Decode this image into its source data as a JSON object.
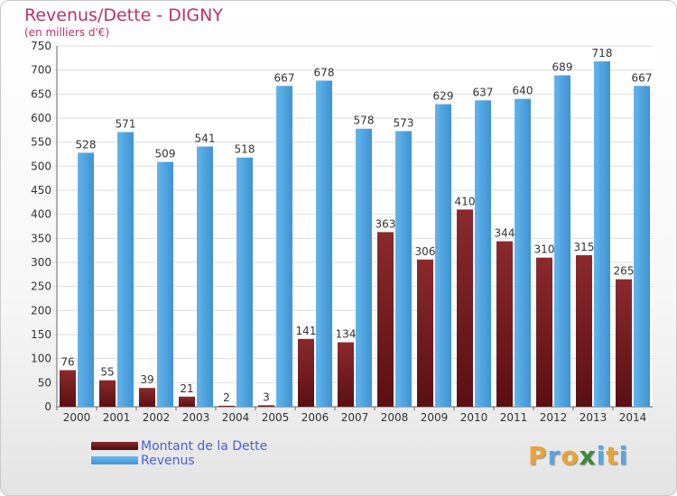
{
  "chart_data": {
    "type": "bar",
    "title": "Revenus/Dette - DIGNY",
    "subtitle": "(en milliers d'€)",
    "categories": [
      "2000",
      "2001",
      "2002",
      "2003",
      "2004",
      "2005",
      "2006",
      "2007",
      "2008",
      "2009",
      "2010",
      "2011",
      "2012",
      "2013",
      "2014"
    ],
    "series": [
      {
        "name": "Montant de la Dette",
        "values": [
          76,
          55,
          39,
          21,
          2,
          3,
          141,
          134,
          363,
          306,
          410,
          344,
          310,
          315,
          265
        ]
      },
      {
        "name": "Revenus",
        "values": [
          528,
          571,
          509,
          541,
          518,
          667,
          678,
          578,
          573,
          629,
          637,
          640,
          689,
          718,
          667
        ]
      }
    ],
    "ylim": [
      0,
      750
    ],
    "yticks": [
      0,
      50,
      100,
      150,
      200,
      250,
      300,
      350,
      400,
      450,
      500,
      550,
      600,
      650,
      700,
      750
    ],
    "grid": true,
    "legend": "bottom-left",
    "colors": {
      "dette": "#7a1f22",
      "revenus": "#4da3e0"
    }
  },
  "logo": {
    "text": "Proxiti",
    "letters": [
      {
        "ch": "P",
        "color": "#e8a33a"
      },
      {
        "ch": "r",
        "color": "#5aa6dd"
      },
      {
        "ch": "o",
        "color": "#e8a33a"
      },
      {
        "ch": "x",
        "color": "#3a8a3a"
      },
      {
        "ch": "i",
        "color": "#5aa6dd"
      },
      {
        "ch": "t",
        "color": "#e8a33a"
      },
      {
        "ch": "i",
        "color": "#5aa6dd"
      }
    ]
  }
}
